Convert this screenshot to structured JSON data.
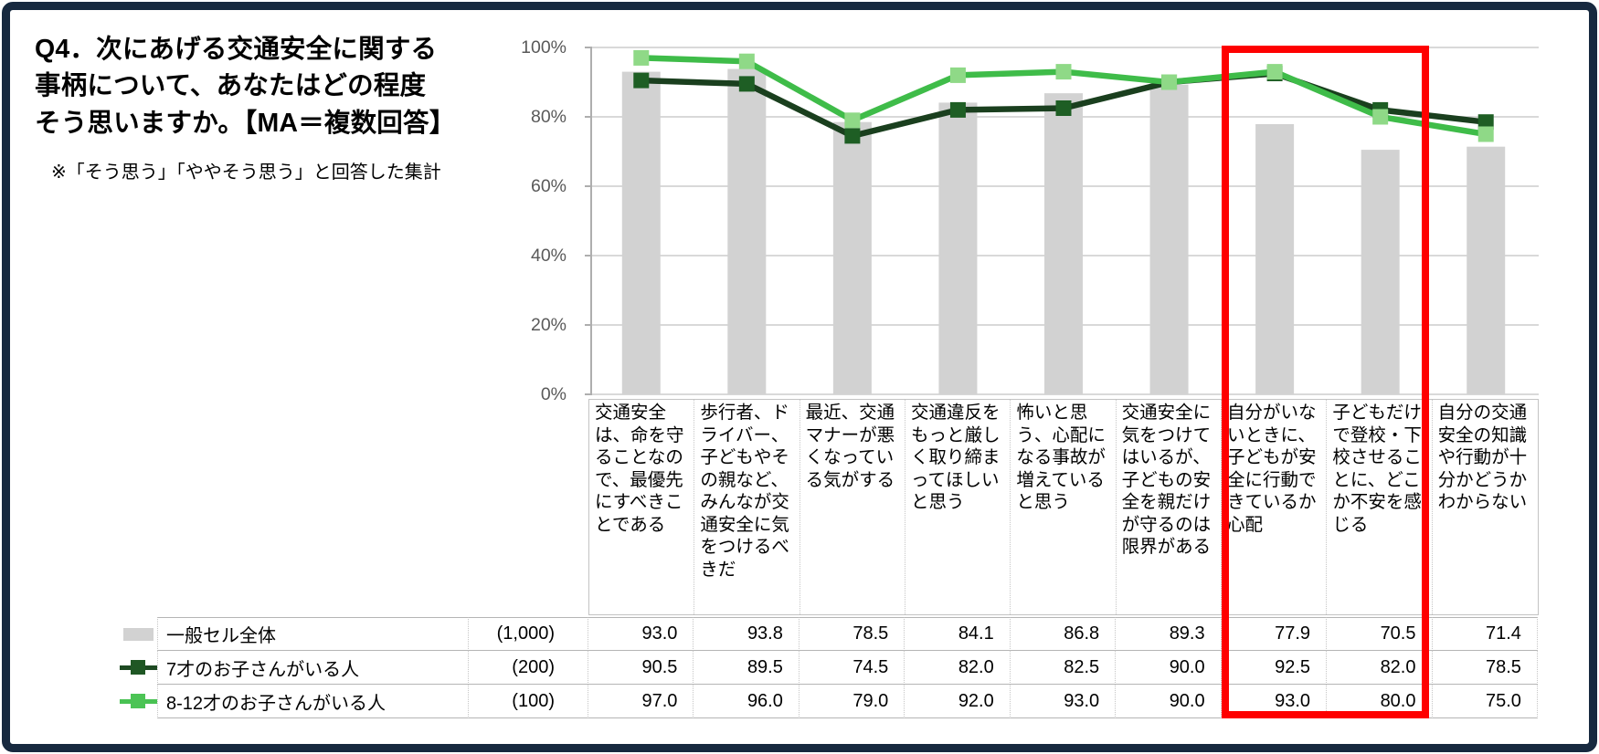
{
  "frame": {
    "border_color": "#17293f",
    "background": "#ffffff"
  },
  "header": {
    "title": "Q4．次にあげる交通安全に関する事柄について、あなたはどの程度そう思いますか。【MA＝複数回答】",
    "note": "※「そう思う」「ややそう思う」と回答した集計"
  },
  "chart_data": {
    "type": "combo-bar-line",
    "title": "Q4．次にあげる交通安全に関する事柄について、あなたはどの程度そう思いますか。【MA＝複数回答】",
    "subtitle": "※「そう思う」「ややそう思う」と回答した集計",
    "unit": "%",
    "categories": [
      "交通安全は、命を守ることなので、最優先にすべきことである",
      "歩行者、ドライバー、子どもやその親など、みんなが交通安全に気をつけるべきだ",
      "最近、交通マナーが悪くなっている気がする",
      "交通違反をもっと厳しく取り締まってほしいと思う",
      "怖いと思う、心配になる事故が増えていると思う",
      "交通安全に気をつけてはいるが、子どもの安全を親だけが守るのは限界がある",
      "自分がいないときに、子どもが安全に行動できているか心配",
      "子どもだけで登校・下校させることに、どこか不安を感じる",
      "自分の交通安全の知識や行動が十分かどうかわからない"
    ],
    "series": [
      {
        "name": "一般セル全体",
        "base_count": "(1,000)",
        "type": "bar",
        "color": "#d2d2d2",
        "values": [
          93.0,
          93.8,
          78.5,
          84.1,
          86.8,
          89.3,
          77.9,
          70.5,
          71.4
        ]
      },
      {
        "name": "7才のお子さんがいる人",
        "base_count": "(200)",
        "type": "line",
        "line_color": "#1a3f1e",
        "marker_color": "#1e5e24",
        "legend_line_color": "#1e4a22",
        "legend_marker_color": "#1f5724",
        "values": [
          90.5,
          89.5,
          74.5,
          82.0,
          82.5,
          90.0,
          92.5,
          82.0,
          78.5
        ]
      },
      {
        "name": "8-12才のお子さんがいる人",
        "base_count": "(100)",
        "type": "line",
        "line_color": "#3fbc49",
        "marker_color": "#8fd987",
        "legend_line_color": "#49c253",
        "legend_marker_color": "#4cc455",
        "values": [
          97.0,
          96.0,
          79.0,
          92.0,
          93.0,
          90.0,
          93.0,
          80.0,
          75.0
        ]
      }
    ],
    "y_axis": {
      "ticks": [
        "100%",
        "80%",
        "60%",
        "40%",
        "20%",
        "0%"
      ],
      "min": 0,
      "max": 100,
      "step": 20
    },
    "grid": true,
    "legend_position": "table-left",
    "highlight": {
      "shape": "red-rectangle",
      "color": "#fe0000",
      "category_start_index": 6,
      "category_end_index": 7
    },
    "colors": {
      "gridline": "#d9d9d9",
      "axis": "#aeaeae",
      "tick_label": "#595959"
    }
  }
}
